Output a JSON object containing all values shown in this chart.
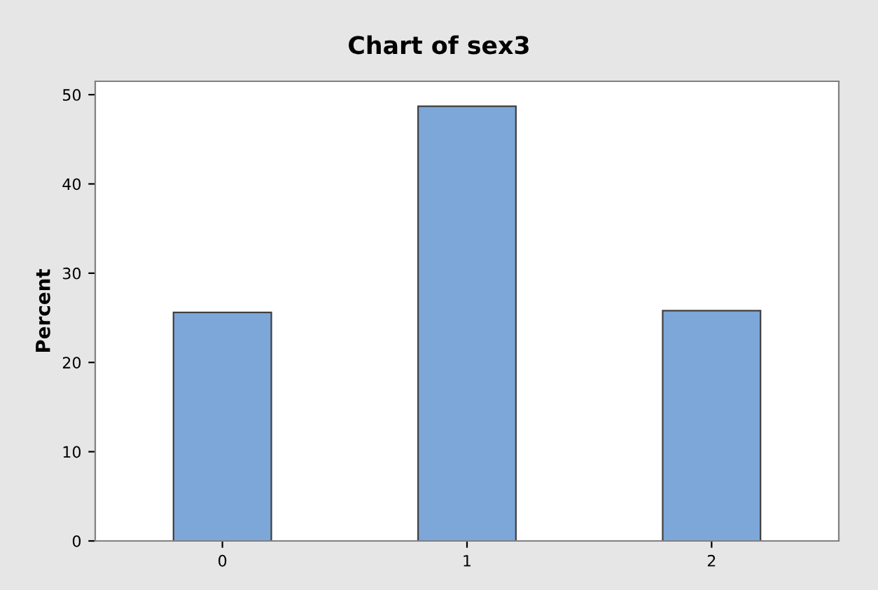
{
  "chart_data": {
    "type": "bar",
    "title": "Chart of sex3",
    "ylabel": "Percent",
    "categories": [
      "0",
      "1",
      "2"
    ],
    "values": [
      25.6,
      48.7,
      25.8
    ],
    "color": "#7da7d9",
    "ylim": [
      0,
      51.5
    ],
    "yticks": [
      0,
      10,
      20,
      30,
      40,
      50
    ],
    "grid": false,
    "legend": false
  }
}
